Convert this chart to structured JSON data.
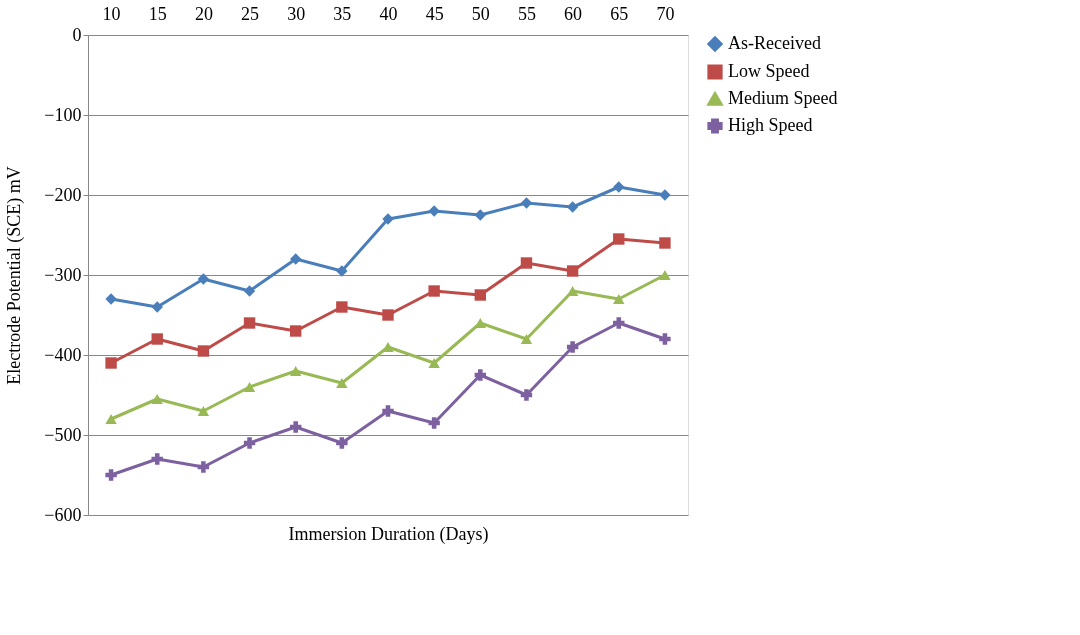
{
  "chart_data": {
    "type": "line",
    "xlabel": "Immersion Duration (Days)",
    "ylabel": "Electrode Potential (SCE) mV",
    "categories": [
      "10",
      "15",
      "20",
      "25",
      "30",
      "35",
      "40",
      "45",
      "50",
      "55",
      "60",
      "65",
      "70"
    ],
    "series": [
      {
        "name": "As-Received",
        "color": "#4a7ebb",
        "marker": "diamond",
        "values": [
          -330,
          -340,
          -305,
          -320,
          -280,
          -295,
          -230,
          -220,
          -225,
          -210,
          -215,
          -190,
          -200
        ]
      },
      {
        "name": "Low Speed",
        "color": "#be4b48",
        "marker": "square",
        "values": [
          -410,
          -380,
          -395,
          -360,
          -370,
          -340,
          -350,
          -320,
          -325,
          -285,
          -295,
          -255,
          -260
        ]
      },
      {
        "name": "Medium Speed",
        "color": "#98b954",
        "marker": "triangle",
        "values": [
          -480,
          -455,
          -470,
          -440,
          -420,
          -435,
          -390,
          -410,
          -360,
          -380,
          -320,
          -330,
          -300
        ]
      },
      {
        "name": "High Speed",
        "color": "#7d60a0",
        "marker": "cross",
        "values": [
          -550,
          -530,
          -540,
          -510,
          -490,
          -510,
          -470,
          -485,
          -425,
          -450,
          -390,
          -360,
          -380
        ]
      }
    ],
    "ylim": [
      -600,
      0
    ],
    "yticks": [
      0,
      -100,
      -200,
      -300,
      -400,
      -500,
      -600
    ],
    "grid": "y",
    "legend": "right",
    "line_style": "solid"
  }
}
